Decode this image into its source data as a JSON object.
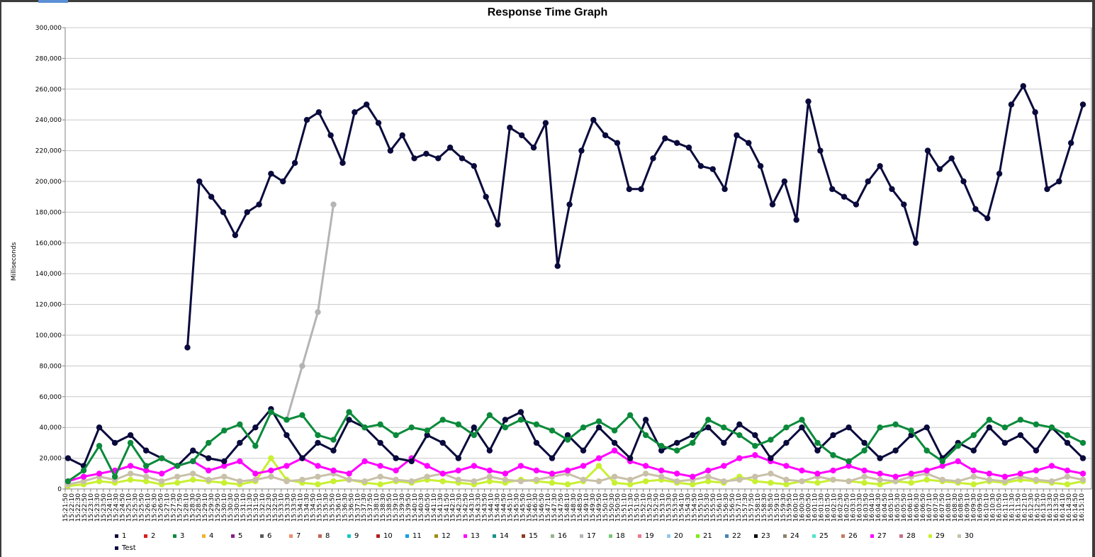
{
  "chart_data": {
    "type": "line",
    "title": "Response Time Graph",
    "ylabel": "Milliseconds",
    "xlabel": "",
    "ylim": [
      0,
      300000
    ],
    "y_ticks": [
      0,
      20000,
      40000,
      60000,
      80000,
      100000,
      120000,
      140000,
      160000,
      180000,
      200000,
      220000,
      240000,
      260000,
      280000,
      300000
    ],
    "y_tick_labels": [
      "0",
      "20,000",
      "40,000",
      "60,000",
      "80,000",
      "100,000",
      "120,000",
      "140,000",
      "160,000",
      "180,000",
      "200,000",
      "220,000",
      "240,000",
      "260,000",
      "280,000",
      "300,000"
    ],
    "x_tick_labels": [
      "15:21:50",
      "15:22:10",
      "15:22:30",
      "15:22:50",
      "15:23:10",
      "15:23:30",
      "15:23:50",
      "15:24:10",
      "15:24:30",
      "15:24:50",
      "15:25:10",
      "15:25:30",
      "15:25:50",
      "15:26:10",
      "15:26:30",
      "15:26:50",
      "15:27:10",
      "15:27:30",
      "15:27:50",
      "15:28:10",
      "15:28:30",
      "15:28:50",
      "15:29:10",
      "15:29:30",
      "15:29:50",
      "15:30:10",
      "15:30:30",
      "15:30:50",
      "15:31:10",
      "15:31:30",
      "15:31:50",
      "15:32:10",
      "15:32:30",
      "15:32:50",
      "15:33:10",
      "15:33:30",
      "15:33:50",
      "15:34:10",
      "15:34:30",
      "15:34:50",
      "15:35:10",
      "15:35:30",
      "15:35:50",
      "15:36:10",
      "15:36:30",
      "15:36:50",
      "15:37:10",
      "15:37:30",
      "15:37:50",
      "15:38:10",
      "15:38:30",
      "15:38:50",
      "15:39:10",
      "15:39:30",
      "15:39:50",
      "15:40:10",
      "15:40:30",
      "15:40:50",
      "15:41:10",
      "15:41:30",
      "15:41:50",
      "15:42:10",
      "15:42:30",
      "15:42:50",
      "15:43:10",
      "15:43:30",
      "15:43:50",
      "15:44:10",
      "15:44:30",
      "15:44:50",
      "15:45:10",
      "15:45:30",
      "15:45:50",
      "15:46:10",
      "15:46:30",
      "15:46:50",
      "15:47:10",
      "15:47:30",
      "15:47:50",
      "15:48:10",
      "15:48:30",
      "15:48:50",
      "15:49:10",
      "15:49:30",
      "15:49:50",
      "15:50:10",
      "15:50:30",
      "15:50:50",
      "15:51:10",
      "15:51:30",
      "15:51:50",
      "15:52:10",
      "15:52:30",
      "15:52:50",
      "15:53:10",
      "15:53:30",
      "15:53:50",
      "15:54:10",
      "15:54:30",
      "15:54:50",
      "15:55:10",
      "15:55:30",
      "15:55:50",
      "15:56:10",
      "15:56:30",
      "15:56:50",
      "15:57:10",
      "15:57:30",
      "15:57:50",
      "15:58:10",
      "15:58:30",
      "15:58:50",
      "15:59:10",
      "15:59:30",
      "15:59:50",
      "16:00:10",
      "16:00:30",
      "16:00:50",
      "16:01:10",
      "16:01:30",
      "16:01:50",
      "16:02:10",
      "16:02:30",
      "16:02:50",
      "16:03:10",
      "16:03:30",
      "16:03:50",
      "16:04:10",
      "16:04:30",
      "16:04:50",
      "16:05:10",
      "16:05:30",
      "16:05:50",
      "16:06:10",
      "16:06:30",
      "16:06:50",
      "16:07:10",
      "16:07:30",
      "16:07:50",
      "16:08:10",
      "16:08:30",
      "16:08:50",
      "16:09:10",
      "16:09:30",
      "16:09:50",
      "16:10:10",
      "16:10:30",
      "16:10:50",
      "16:11:10",
      "16:11:30",
      "16:11:50",
      "16:12:10",
      "16:12:30",
      "16:12:50",
      "16:13:10",
      "16:13:30",
      "16:13:50",
      "16:14:10",
      "16:14:30",
      "16:14:50",
      "16:15:10"
    ],
    "legend_position": "bottom",
    "grid": true,
    "series": [
      {
        "name": "Test",
        "color": "#0a0a3c",
        "values": [
          null,
          null,
          null,
          null,
          null,
          null,
          null,
          null,
          null,
          null,
          92000,
          200000,
          190000,
          180000,
          165000,
          180000,
          185000,
          205000,
          200000,
          212000,
          240000,
          245000,
          230000,
          212000,
          245000,
          250000,
          238000,
          220000,
          230000,
          215000,
          218000,
          215000,
          222000,
          215000,
          210000,
          190000,
          172000,
          235000,
          230000,
          222000,
          238000,
          145000,
          185000,
          220000,
          240000,
          230000,
          225000,
          195000,
          195000,
          215000,
          228000,
          225000,
          222000,
          210000,
          208000,
          195000,
          230000,
          225000,
          210000,
          185000,
          200000,
          175000,
          252000,
          220000,
          195000,
          190000,
          185000,
          200000,
          210000,
          195000,
          185000,
          160000,
          220000,
          208000,
          215000,
          200000,
          182000,
          176000,
          205000,
          250000,
          262000,
          245000,
          195000,
          200000,
          225000,
          250000
        ]
      },
      {
        "name": "3",
        "color": "#0a8a3a",
        "values": [
          5000,
          12000,
          28000,
          8000,
          30000,
          15000,
          20000,
          15000,
          18000,
          30000,
          38000,
          42000,
          28000,
          50000,
          45000,
          48000,
          35000,
          32000,
          50000,
          40000,
          42000,
          35000,
          40000,
          38000,
          45000,
          42000,
          35000,
          48000,
          40000,
          45000,
          42000,
          38000,
          32000,
          40000,
          44000,
          38000,
          48000,
          35000,
          28000,
          25000,
          30000,
          45000,
          40000,
          35000,
          28000,
          32000,
          40000,
          45000,
          30000,
          22000,
          18000,
          25000,
          40000,
          42000,
          38000,
          25000,
          18000,
          28000,
          35000,
          45000,
          40000,
          45000,
          42000,
          40000,
          35000,
          30000
        ]
      },
      {
        "name": "1",
        "color": "#0a0a3c",
        "values": [
          20000,
          15000,
          40000,
          30000,
          35000,
          25000,
          20000,
          15000,
          25000,
          20000,
          18000,
          30000,
          40000,
          52000,
          35000,
          20000,
          30000,
          25000,
          45000,
          40000,
          30000,
          20000,
          18000,
          35000,
          30000,
          20000,
          40000,
          25000,
          45000,
          50000,
          30000,
          20000,
          35000,
          25000,
          40000,
          30000,
          20000,
          45000,
          25000,
          30000,
          35000,
          40000,
          30000,
          42000,
          35000,
          20000,
          30000,
          40000,
          25000,
          35000,
          40000,
          30000,
          20000,
          25000,
          35000,
          40000,
          20000,
          30000,
          25000,
          40000,
          30000,
          35000,
          25000,
          40000,
          30000,
          20000
        ]
      },
      {
        "name": "27",
        "color": "#ff00ff",
        "values": [
          5000,
          8000,
          10000,
          12000,
          15000,
          12000,
          10000,
          15000,
          18000,
          12000,
          15000,
          18000,
          10000,
          12000,
          15000,
          20000,
          15000,
          12000,
          10000,
          18000,
          15000,
          12000,
          20000,
          15000,
          10000,
          12000,
          15000,
          12000,
          10000,
          15000,
          12000,
          10000,
          12000,
          15000,
          20000,
          25000,
          18000,
          15000,
          12000,
          10000,
          8000,
          12000,
          15000,
          20000,
          22000,
          18000,
          15000,
          12000,
          10000,
          12000,
          15000,
          12000,
          10000,
          8000,
          10000,
          12000,
          15000,
          18000,
          12000,
          10000,
          8000,
          10000,
          12000,
          15000,
          12000,
          10000
        ]
      },
      {
        "name": "17",
        "color": "#b4b4b4",
        "values": [
          null,
          null,
          null,
          null,
          null,
          null,
          null,
          null,
          null,
          null,
          null,
          null,
          null,
          null,
          45000,
          80000,
          115000,
          185000,
          null,
          null,
          null,
          null,
          null,
          null,
          null,
          null,
          null,
          null,
          null,
          null,
          null,
          null,
          null,
          null,
          null,
          null,
          null,
          null,
          null,
          null,
          null,
          null,
          null,
          null,
          null,
          null,
          null,
          null,
          null,
          null,
          null,
          null,
          null,
          null,
          null,
          null,
          null,
          null,
          null,
          null,
          null,
          null,
          null,
          null,
          null,
          null
        ]
      },
      {
        "name": "30",
        "color": "#c8c0a8",
        "values": [
          3000,
          5000,
          8000,
          6000,
          10000,
          8000,
          5000,
          8000,
          10000,
          6000,
          8000,
          5000,
          6000,
          8000,
          5000,
          6000,
          8000,
          10000,
          6000,
          5000,
          8000,
          6000,
          5000,
          8000,
          10000,
          6000,
          5000,
          8000,
          6000,
          5000,
          6000,
          8000,
          10000,
          6000,
          5000,
          8000,
          6000,
          10000,
          8000,
          5000,
          6000,
          8000,
          5000,
          6000,
          8000,
          10000,
          6000,
          5000,
          8000,
          6000,
          5000,
          8000,
          6000,
          5000,
          8000,
          10000,
          6000,
          5000,
          8000,
          6000,
          5000,
          8000,
          6000,
          5000,
          8000,
          6000
        ]
      },
      {
        "name": "29",
        "color": "#c8f032",
        "values": [
          2000,
          3000,
          5000,
          4000,
          6000,
          5000,
          3000,
          4000,
          6000,
          5000,
          4000,
          3000,
          5000,
          20000,
          6000,
          4000,
          3000,
          5000,
          6000,
          4000,
          3000,
          5000,
          4000,
          6000,
          5000,
          4000,
          3000,
          5000,
          4000,
          6000,
          5000,
          4000,
          3000,
          5000,
          15000,
          4000,
          3000,
          5000,
          6000,
          4000,
          3000,
          5000,
          4000,
          8000,
          5000,
          4000,
          3000,
          5000,
          4000,
          6000,
          5000,
          4000,
          3000,
          5000,
          4000,
          6000,
          5000,
          4000,
          3000,
          5000,
          4000,
          6000,
          5000,
          4000,
          3000,
          5000
        ]
      }
    ],
    "legend": [
      "1",
      "2",
      "3",
      "4",
      "5",
      "6",
      "7",
      "8",
      "9",
      "10",
      "11",
      "12",
      "13",
      "14",
      "15",
      "16",
      "17",
      "18",
      "19",
      "20",
      "21",
      "22",
      "23",
      "24",
      "25",
      "26",
      "27",
      "28",
      "29",
      "30",
      "Test"
    ],
    "legend_colors": [
      "#0a0a3c",
      "#d81e1e",
      "#0a8a3a",
      "#f0b428",
      "#8a1e8a",
      "#5a5a5a",
      "#f08c6e",
      "#c86450",
      "#14c8c8",
      "#b41e1e",
      "#14a0e6",
      "#a08c14",
      "#ff00ff",
      "#14968c",
      "#8c3c1e",
      "#96b48c",
      "#b4b4b4",
      "#78c878",
      "#f0788c",
      "#8cc8f0",
      "#78f014",
      "#4682b4",
      "#000000",
      "#8c8264",
      "#50e6c8",
      "#c87864",
      "#ff00ff",
      "#c86e82",
      "#c8f032",
      "#c8c0a8",
      "#0a0a3c"
    ]
  }
}
